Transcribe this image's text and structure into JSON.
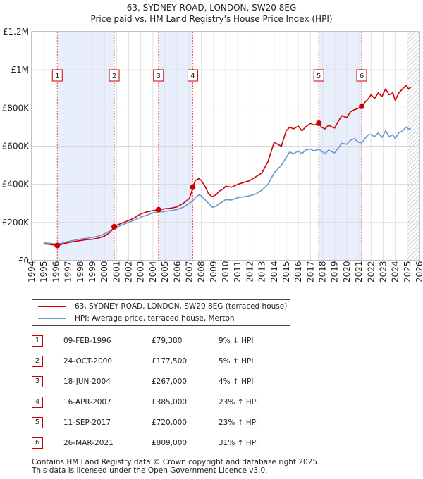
{
  "header": {
    "title": "63, SYDNEY ROAD, LONDON, SW20 8EG",
    "subtitle": "Price paid vs. HM Land Registry's House Price Index (HPI)"
  },
  "colors": {
    "property": "#cc0000",
    "hpi": "#6b96cf",
    "shade": "#e8eefb",
    "marker_border": "#cc0000"
  },
  "chart_data": {
    "type": "line",
    "title": "63, SYDNEY ROAD, LONDON, SW20 8EG",
    "xlim": [
      1994,
      2026
    ],
    "ylim": [
      0,
      1200000
    ],
    "x_ticks": [
      "1994",
      "1995",
      "1996",
      "1997",
      "1998",
      "1999",
      "2000",
      "2001",
      "2002",
      "2003",
      "2004",
      "2005",
      "2006",
      "2007",
      "2008",
      "2009",
      "2010",
      "2011",
      "2012",
      "2013",
      "2014",
      "2015",
      "2016",
      "2017",
      "2018",
      "2019",
      "2020",
      "2021",
      "2022",
      "2023",
      "2024",
      "2025",
      "2026"
    ],
    "y_ticks": [
      {
        "value": 0,
        "label": "£0"
      },
      {
        "value": 200000,
        "label": "£200K"
      },
      {
        "value": 400000,
        "label": "£400K"
      },
      {
        "value": 600000,
        "label": "£600K"
      },
      {
        "value": 800000,
        "label": "£800K"
      },
      {
        "value": 1000000,
        "label": "£1M"
      },
      {
        "value": 1200000,
        "label": "£1.2M"
      }
    ],
    "shaded_periods": [
      [
        1996.1,
        2000.8
      ],
      [
        2004.46,
        2007.29
      ],
      [
        2017.69,
        2021.23
      ]
    ],
    "hatch_after": 2025.0,
    "series": [
      {
        "name": "63, SYDNEY ROAD, LONDON, SW20 8EG (terraced house)",
        "color": "#cc0000",
        "x": [
          1995.0,
          1995.5,
          1996.1,
          1996.5,
          1997,
          1997.5,
          1998,
          1998.5,
          1999,
          1999.5,
          2000,
          2000.5,
          2000.81,
          2001,
          2001.5,
          2002,
          2002.5,
          2003,
          2003.5,
          2004,
          2004.46,
          2004.8,
          2005,
          2005.5,
          2006,
          2006.5,
          2007,
          2007.2,
          2007.29,
          2007.5,
          2007.8,
          2008,
          2008.3,
          2008.6,
          2008.9,
          2009.2,
          2009.5,
          2009.8,
          2010,
          2010.5,
          2011,
          2011.5,
          2012,
          2012.5,
          2013,
          2013.5,
          2014,
          2014.3,
          2014.6,
          2015,
          2015.3,
          2015.6,
          2016,
          2016.3,
          2016.6,
          2017,
          2017.3,
          2017.69,
          2017.9,
          2018.2,
          2018.5,
          2018.8,
          2019,
          2019.3,
          2019.6,
          2020,
          2020.3,
          2020.6,
          2021,
          2021.23,
          2021.5,
          2021.8,
          2022,
          2022.3,
          2022.6,
          2022.9,
          2023.2,
          2023.5,
          2023.8,
          2024,
          2024.3,
          2024.6,
          2024.9,
          2025.1,
          2025.3
        ],
        "y": [
          88000,
          85000,
          79380,
          86000,
          95000,
          100000,
          105000,
          110000,
          112000,
          118000,
          128000,
          150000,
          177500,
          185000,
          198000,
          210000,
          225000,
          245000,
          255000,
          262000,
          267000,
          270000,
          272000,
          275000,
          282000,
          300000,
          325000,
          360000,
          385000,
          420000,
          430000,
          420000,
          390000,
          350000,
          335000,
          345000,
          365000,
          375000,
          390000,
          385000,
          400000,
          410000,
          420000,
          440000,
          460000,
          520000,
          620000,
          610000,
          600000,
          680000,
          700000,
          690000,
          705000,
          680000,
          700000,
          720000,
          710000,
          720000,
          700000,
          690000,
          710000,
          700000,
          695000,
          730000,
          760000,
          750000,
          780000,
          790000,
          800000,
          809000,
          830000,
          850000,
          870000,
          850000,
          880000,
          860000,
          900000,
          870000,
          880000,
          840000,
          880000,
          900000,
          920000,
          900000,
          910000
        ]
      },
      {
        "name": "HPI: Average price, terraced house, Merton",
        "color": "#6b96cf",
        "x": [
          1995.0,
          1995.5,
          1996.1,
          1996.5,
          1997,
          1997.5,
          1998,
          1998.5,
          1999,
          1999.5,
          2000,
          2000.5,
          2000.81,
          2001,
          2001.5,
          2002,
          2002.5,
          2003,
          2003.5,
          2004,
          2004.46,
          2004.8,
          2005,
          2005.5,
          2006,
          2006.5,
          2007,
          2007.29,
          2007.5,
          2007.8,
          2008,
          2008.3,
          2008.6,
          2008.9,
          2009.2,
          2009.5,
          2009.8,
          2010,
          2010.5,
          2011,
          2011.5,
          2012,
          2012.5,
          2013,
          2013.5,
          2014,
          2014.3,
          2014.6,
          2015,
          2015.3,
          2015.6,
          2016,
          2016.3,
          2016.6,
          2017,
          2017.3,
          2017.69,
          2017.9,
          2018.2,
          2018.5,
          2018.8,
          2019,
          2019.3,
          2019.6,
          2020,
          2020.3,
          2020.6,
          2021,
          2021.23,
          2021.5,
          2021.8,
          2022,
          2022.3,
          2022.6,
          2022.9,
          2023.2,
          2023.5,
          2023.8,
          2024,
          2024.3,
          2024.6,
          2024.9,
          2025.1,
          2025.3
        ],
        "y": [
          93000,
          91000,
          87000,
          92000,
          100000,
          107000,
          113000,
          117000,
          122000,
          128000,
          140000,
          158000,
          169000,
          175000,
          188000,
          200000,
          213000,
          228000,
          238000,
          250000,
          257000,
          257000,
          258000,
          262000,
          268000,
          280000,
          300000,
          313000,
          330000,
          345000,
          340000,
          320000,
          300000,
          280000,
          285000,
          300000,
          310000,
          320000,
          318000,
          330000,
          335000,
          340000,
          350000,
          370000,
          400000,
          460000,
          480000,
          500000,
          540000,
          570000,
          560000,
          575000,
          560000,
          580000,
          585000,
          575000,
          585000,
          575000,
          560000,
          580000,
          570000,
          565000,
          590000,
          615000,
          610000,
          630000,
          640000,
          620000,
          617000,
          640000,
          660000,
          660000,
          650000,
          670000,
          645000,
          680000,
          650000,
          660000,
          640000,
          670000,
          680000,
          700000,
          690000,
          690000
        ]
      }
    ],
    "sales": [
      {
        "num": "1",
        "x": 1996.11,
        "y": 79380
      },
      {
        "num": "2",
        "x": 2000.81,
        "y": 177500
      },
      {
        "num": "3",
        "x": 2004.46,
        "y": 267000
      },
      {
        "num": "4",
        "x": 2007.29,
        "y": 385000
      },
      {
        "num": "5",
        "x": 2017.69,
        "y": 720000
      },
      {
        "num": "6",
        "x": 2021.23,
        "y": 809000
      }
    ]
  },
  "legend": {
    "property_label": "63, SYDNEY ROAD, LONDON, SW20 8EG (terraced house)",
    "hpi_label": "HPI: Average price, terraced house, Merton"
  },
  "transactions": [
    {
      "num": "1",
      "date": "09-FEB-1996",
      "price": "£79,380",
      "hpi": "9% ↓ HPI"
    },
    {
      "num": "2",
      "date": "24-OCT-2000",
      "price": "£177,500",
      "hpi": "5% ↑ HPI"
    },
    {
      "num": "3",
      "date": "18-JUN-2004",
      "price": "£267,000",
      "hpi": "4% ↑ HPI"
    },
    {
      "num": "4",
      "date": "16-APR-2007",
      "price": "£385,000",
      "hpi": "23% ↑ HPI"
    },
    {
      "num": "5",
      "date": "11-SEP-2017",
      "price": "£720,000",
      "hpi": "23% ↑ HPI"
    },
    {
      "num": "6",
      "date": "26-MAR-2021",
      "price": "£809,000",
      "hpi": "31% ↑ HPI"
    }
  ],
  "footer": {
    "line1": "Contains HM Land Registry data © Crown copyright and database right 2025.",
    "line2": "This data is licensed under the Open Government Licence v3.0."
  }
}
